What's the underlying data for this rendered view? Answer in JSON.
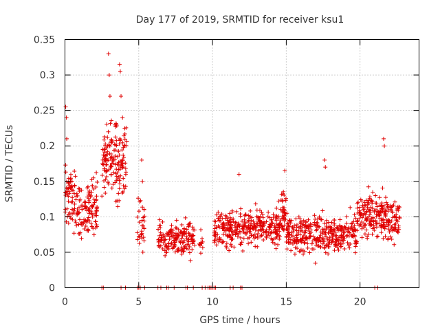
{
  "chart_data": {
    "type": "scatter",
    "title": "Day 177 of 2019, SRMTID for receiver ksu1",
    "xlabel": "GPS time / hours",
    "ylabel": "SRMTID / TECUs",
    "xlim": [
      0,
      24
    ],
    "ylim": [
      0,
      0.35
    ],
    "grid": true,
    "x_ticks": [
      0,
      5,
      10,
      15,
      20
    ],
    "x_tick_labels": [
      "0",
      "5",
      "10",
      "15",
      "20"
    ],
    "y_ticks": [
      0,
      0.05,
      0.1,
      0.15,
      0.2,
      0.25,
      0.3,
      0.35
    ],
    "y_tick_labels": [
      "0",
      "0.05",
      "0.1",
      "0.15",
      "0.2",
      "0.25",
      "0.3",
      "0.35"
    ],
    "series": [
      {
        "name": "SRMTID",
        "color": "#e00000",
        "marker": "plus",
        "segments": [
          {
            "x_start": 0.0,
            "x_end": 0.5,
            "y_mean": 0.13,
            "y_spread": 0.06,
            "y_min": 0.04,
            "y_max": 0.26,
            "n": 45
          },
          {
            "x_start": 0.5,
            "x_end": 2.2,
            "y_mean": 0.11,
            "y_spread": 0.05,
            "y_min": 0.04,
            "y_max": 0.2,
            "n": 130
          },
          {
            "x_start": 2.5,
            "x_end": 4.2,
            "y_mean": 0.18,
            "y_spread": 0.06,
            "y_min": 0.06,
            "y_max": 0.33,
            "n": 160
          },
          {
            "x_start": 4.9,
            "x_end": 5.4,
            "y_mean": 0.09,
            "y_spread": 0.04,
            "y_min": 0.05,
            "y_max": 0.18,
            "n": 30
          },
          {
            "x_start": 6.3,
            "x_end": 8.8,
            "y_mean": 0.07,
            "y_spread": 0.03,
            "y_min": 0.03,
            "y_max": 0.14,
            "n": 170
          },
          {
            "x_start": 9.0,
            "x_end": 9.4,
            "y_mean": 0.06,
            "y_spread": 0.02,
            "y_min": 0.02,
            "y_max": 0.1,
            "n": 10
          },
          {
            "x_start": 10.1,
            "x_end": 14.6,
            "y_mean": 0.085,
            "y_spread": 0.03,
            "y_min": 0.03,
            "y_max": 0.16,
            "n": 330
          },
          {
            "x_start": 14.6,
            "x_end": 15.0,
            "y_mean": 0.11,
            "y_spread": 0.03,
            "y_min": 0.05,
            "y_max": 0.17,
            "n": 40
          },
          {
            "x_start": 15.0,
            "x_end": 19.8,
            "y_mean": 0.075,
            "y_spread": 0.03,
            "y_min": 0.02,
            "y_max": 0.18,
            "n": 360
          },
          {
            "x_start": 19.8,
            "x_end": 22.7,
            "y_mean": 0.1,
            "y_spread": 0.035,
            "y_min": 0.04,
            "y_max": 0.21,
            "n": 230
          }
        ],
        "peaks": [
          {
            "x": 0.05,
            "y": 0.255
          },
          {
            "x": 0.1,
            "y": 0.24
          },
          {
            "x": 0.12,
            "y": 0.21
          },
          {
            "x": 2.95,
            "y": 0.33
          },
          {
            "x": 3.0,
            "y": 0.3
          },
          {
            "x": 3.05,
            "y": 0.27
          },
          {
            "x": 3.7,
            "y": 0.315
          },
          {
            "x": 3.75,
            "y": 0.305
          },
          {
            "x": 3.8,
            "y": 0.27
          },
          {
            "x": 3.9,
            "y": 0.24
          },
          {
            "x": 5.2,
            "y": 0.18
          },
          {
            "x": 5.25,
            "y": 0.15
          },
          {
            "x": 11.8,
            "y": 0.16
          },
          {
            "x": 14.9,
            "y": 0.165
          },
          {
            "x": 17.6,
            "y": 0.18
          },
          {
            "x": 17.65,
            "y": 0.17
          },
          {
            "x": 21.6,
            "y": 0.21
          },
          {
            "x": 21.65,
            "y": 0.2
          }
        ],
        "zero_points_x": [
          2.5,
          2.6,
          3.8,
          4.1,
          4.9,
          5.0,
          5.1,
          5.4,
          6.3,
          6.5,
          6.9,
          7.0,
          7.4,
          8.2,
          8.3,
          8.7,
          9.3,
          9.5,
          9.7,
          9.8,
          9.9,
          10.0,
          10.1,
          10.2,
          11.2,
          11.4,
          11.9,
          12.0,
          21.0,
          21.2
        ]
      }
    ]
  }
}
